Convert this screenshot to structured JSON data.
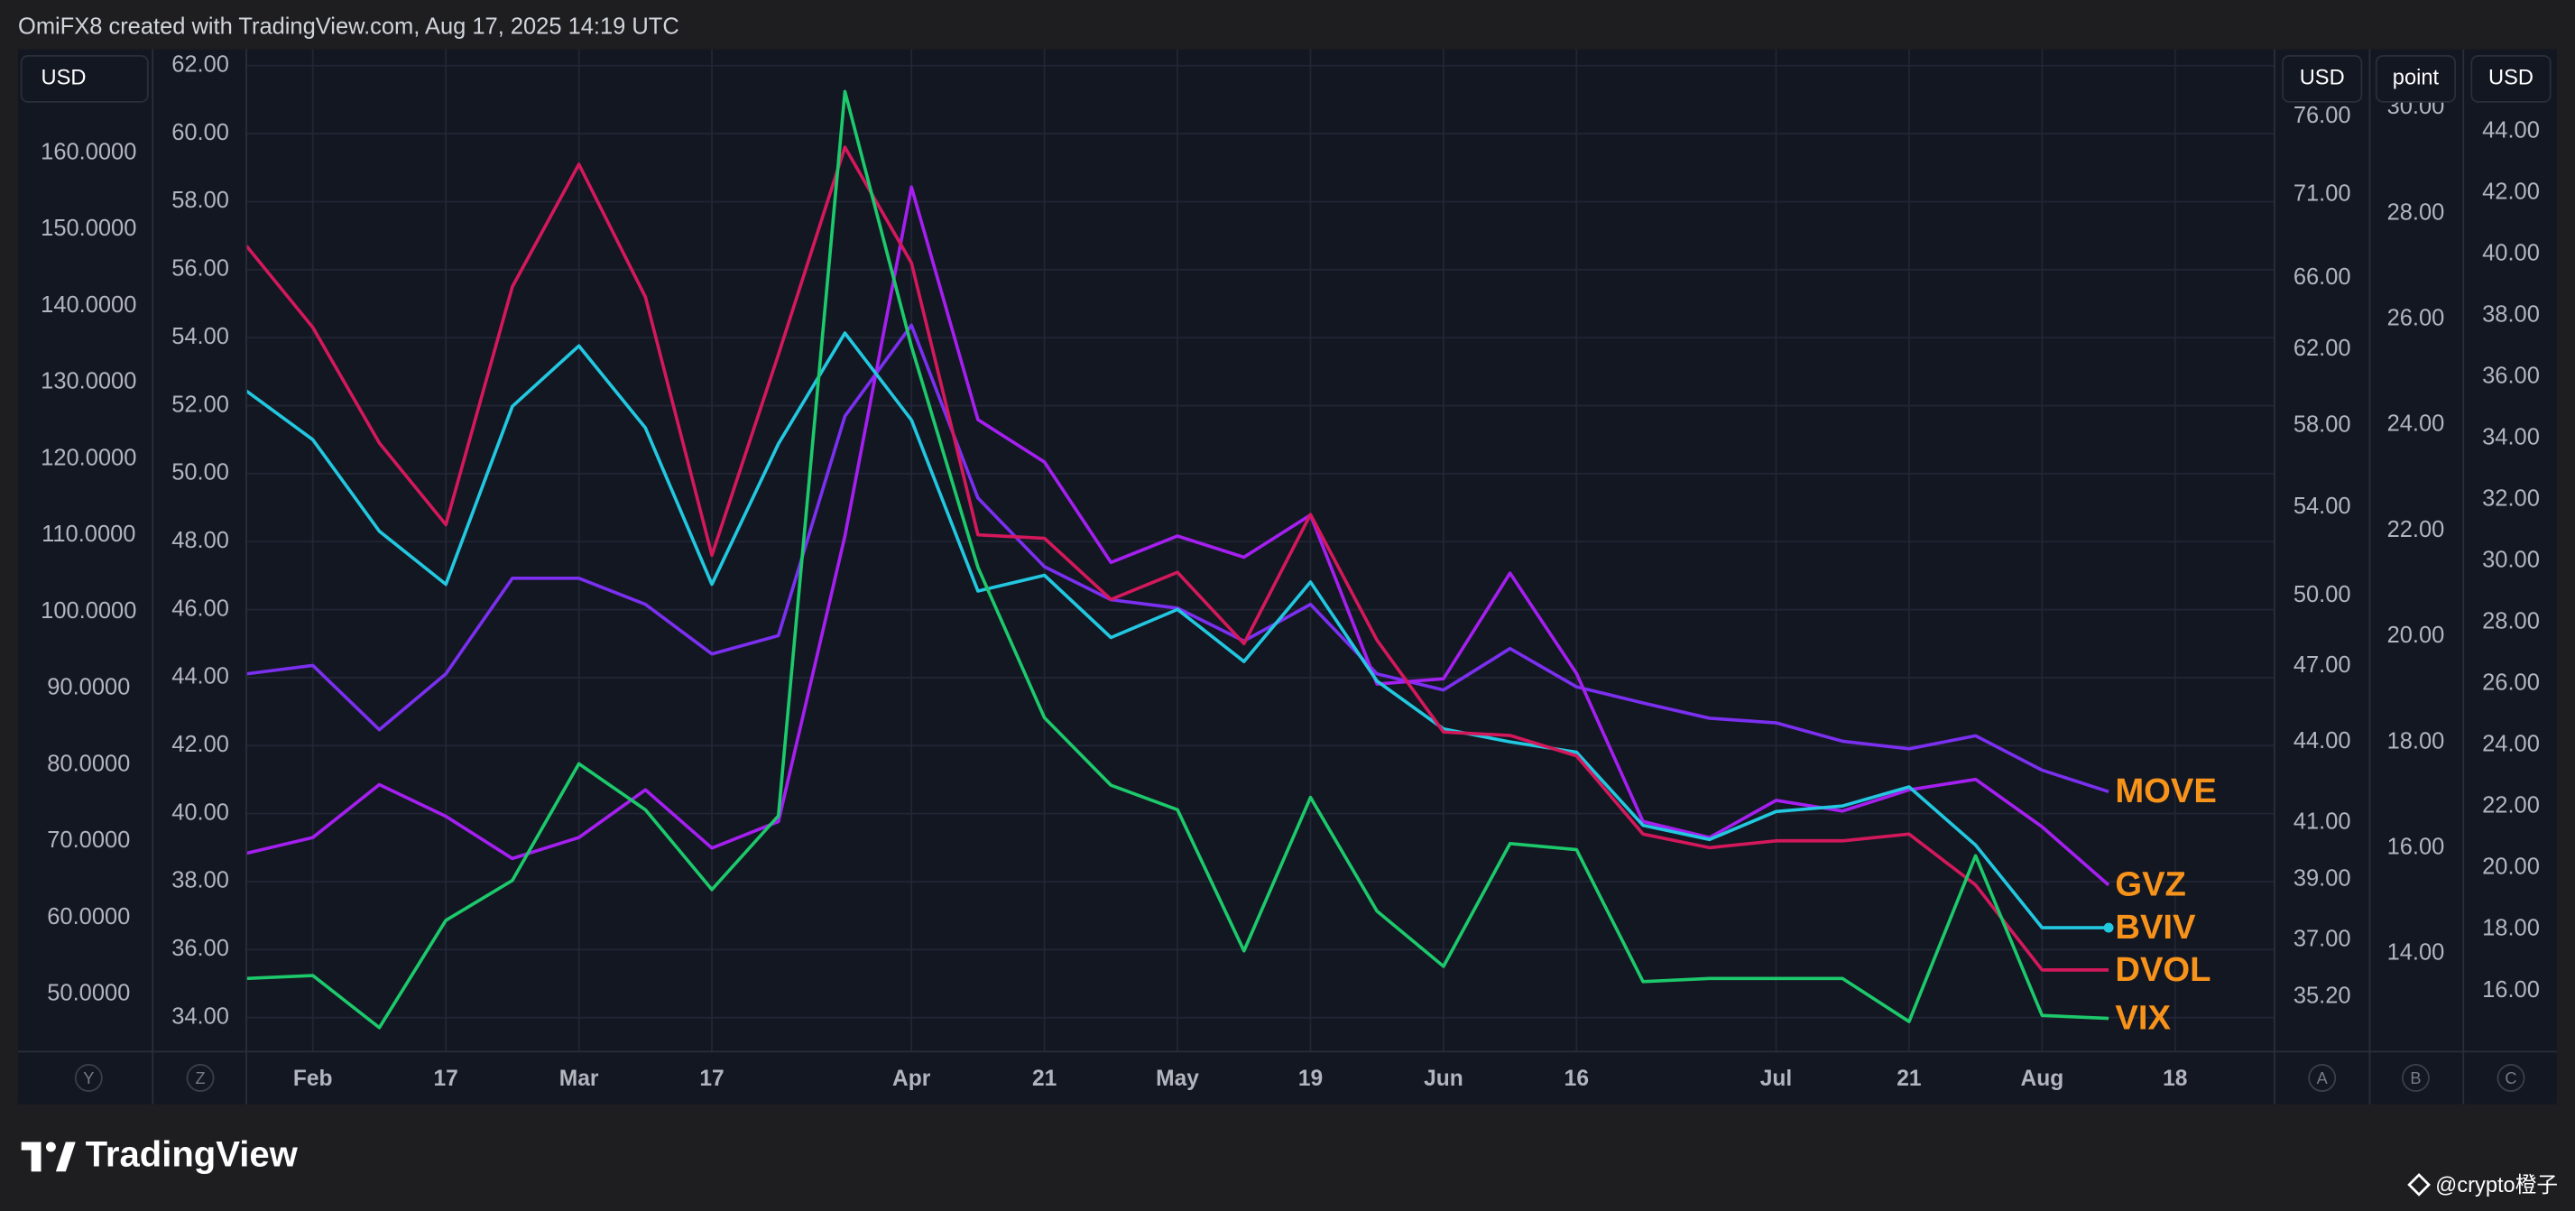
{
  "header": {
    "text": "OmiFX8 created with TradingView.com, Aug 17, 2025 14:19 UTC"
  },
  "chart_data": {
    "type": "line",
    "categories": [
      null,
      "Feb",
      null,
      "17",
      null,
      "Mar",
      null,
      "17",
      null,
      null,
      "Apr",
      null,
      "21",
      null,
      "May",
      null,
      "19",
      null,
      "Jun",
      null,
      "16",
      null,
      null,
      "Jul",
      null,
      "21",
      null,
      "Aug",
      null,
      "18"
    ],
    "grid": true,
    "grid_axis": "Z",
    "label_color": "#f7931a",
    "axes": [
      {
        "id": "Y",
        "side": "left",
        "unit": "USD",
        "lim": [
          42.5,
          172.5
        ],
        "ticks": [
          {
            "value": 50,
            "label": "50.0000"
          },
          {
            "value": 60,
            "label": "60.0000"
          },
          {
            "value": 70,
            "label": "70.0000"
          },
          {
            "value": 80,
            "label": "80.0000"
          },
          {
            "value": 90,
            "label": "90.0000"
          },
          {
            "value": 100,
            "label": "100.0000"
          },
          {
            "value": 110,
            "label": "110.0000"
          },
          {
            "value": 120,
            "label": "120.0000"
          },
          {
            "value": 130,
            "label": "130.0000"
          },
          {
            "value": 140,
            "label": "140.0000"
          },
          {
            "value": 150,
            "label": "150.0000"
          },
          {
            "value": 160,
            "label": "160.0000"
          }
        ]
      },
      {
        "id": "Z",
        "side": "left",
        "lim": [
          33.0,
          62.24
        ],
        "ticks": [
          {
            "value": 34,
            "label": "34.00"
          },
          {
            "value": 36,
            "label": "36.00"
          },
          {
            "value": 38,
            "label": "38.00"
          },
          {
            "value": 40,
            "label": "40.00"
          },
          {
            "value": 42,
            "label": "42.00"
          },
          {
            "value": 44,
            "label": "44.00"
          },
          {
            "value": 46,
            "label": "46.00"
          },
          {
            "value": 48,
            "label": "48.00"
          },
          {
            "value": 50,
            "label": "50.00"
          },
          {
            "value": 52,
            "label": "52.00"
          },
          {
            "value": 54,
            "label": "54.00"
          },
          {
            "value": 56,
            "label": "56.00"
          },
          {
            "value": 58,
            "label": "58.00"
          },
          {
            "value": 60,
            "label": "60.00"
          },
          {
            "value": 62,
            "label": "62.00"
          }
        ]
      },
      {
        "id": "A",
        "side": "right",
        "unit": "USD",
        "log": true,
        "lim": [
          33.56,
          80.04
        ],
        "ticks": [
          {
            "value": 35.2,
            "label": "35.20"
          },
          {
            "value": 37,
            "label": "37.00"
          },
          {
            "value": 39,
            "label": "39.00"
          },
          {
            "value": 41,
            "label": "41.00"
          },
          {
            "value": 44,
            "label": "44.00"
          },
          {
            "value": 47,
            "label": "47.00"
          },
          {
            "value": 50,
            "label": "50.00"
          },
          {
            "value": 54,
            "label": "54.00"
          },
          {
            "value": 58,
            "label": "58.00"
          },
          {
            "value": 62,
            "label": "62.00"
          },
          {
            "value": 66,
            "label": "66.00"
          },
          {
            "value": 71,
            "label": "71.00"
          },
          {
            "value": 76,
            "label": "76.00"
          }
        ]
      },
      {
        "id": "B",
        "side": "right",
        "unit": "point",
        "lim": [
          12.15,
          30.95
        ],
        "ticks": [
          {
            "value": 14,
            "label": "14.00"
          },
          {
            "value": 16,
            "label": "16.00"
          },
          {
            "value": 18,
            "label": "18.00"
          },
          {
            "value": 20,
            "label": "20.00"
          },
          {
            "value": 22,
            "label": "22.00"
          },
          {
            "value": 24,
            "label": "24.00"
          },
          {
            "value": 26,
            "label": "26.00"
          },
          {
            "value": 28,
            "label": "28.00"
          },
          {
            "value": 30,
            "label": "30.00"
          }
        ]
      },
      {
        "id": "C",
        "side": "right",
        "unit": "USD",
        "lim": [
          14.02,
          46.41
        ],
        "ticks": [
          {
            "value": 16,
            "label": "16.00"
          },
          {
            "value": 18,
            "label": "18.00"
          },
          {
            "value": 20,
            "label": "20.00"
          },
          {
            "value": 22,
            "label": "22.00"
          },
          {
            "value": 24,
            "label": "24.00"
          },
          {
            "value": 26,
            "label": "26.00"
          },
          {
            "value": 28,
            "label": "28.00"
          },
          {
            "value": 30,
            "label": "30.00"
          },
          {
            "value": 32,
            "label": "32.00"
          },
          {
            "value": 34,
            "label": "34.00"
          },
          {
            "value": 36,
            "label": "36.00"
          },
          {
            "value": 38,
            "label": "38.00"
          },
          {
            "value": 40,
            "label": "40.00"
          },
          {
            "value": 42,
            "label": "42.00"
          },
          {
            "value": 44,
            "label": "44.00"
          }
        ]
      }
    ],
    "series": [
      {
        "name": "MOVE",
        "color": "#7b2ff0",
        "axis": "Y",
        "values": [
          91.9,
          93.0,
          84.6,
          91.9,
          104.4,
          104.4,
          101.0,
          94.5,
          96.9,
          125.6,
          137.5,
          114.9,
          105.9,
          101.6,
          100.5,
          96.2,
          101.0,
          91.9,
          89.8,
          95.2,
          90.2,
          88.1,
          86.1,
          85.5,
          83.1,
          82.1,
          83.8,
          79.3,
          76.5,
          null
        ]
      },
      {
        "name": "GVZ",
        "color": "#a51ff0",
        "axis": "B",
        "values": [
          15.9,
          16.2,
          17.2,
          16.6,
          15.8,
          16.2,
          17.1,
          16.0,
          16.5,
          21.9,
          28.5,
          24.1,
          23.3,
          21.4,
          21.9,
          21.5,
          22.3,
          19.1,
          19.2,
          21.2,
          19.3,
          16.5,
          16.2,
          16.9,
          16.7,
          17.1,
          17.3,
          16.4,
          15.3,
          null
        ]
      },
      {
        "name": "BVIV",
        "color": "#22c8e0",
        "axis": "A",
        "end_dot": true,
        "values": [
          59.8,
          57.3,
          52.9,
          50.5,
          59.0,
          62.2,
          57.9,
          50.5,
          57.1,
          62.9,
          58.3,
          50.2,
          50.9,
          48.2,
          49.4,
          47.2,
          50.6,
          46.4,
          44.5,
          44.0,
          43.6,
          40.9,
          40.4,
          41.4,
          41.6,
          42.3,
          40.2,
          37.4,
          37.4,
          null
        ]
      },
      {
        "name": "DVOL",
        "color": "#d4185c",
        "axis": "Z",
        "values": [
          56.7,
          54.3,
          50.9,
          48.5,
          55.5,
          59.1,
          55.2,
          47.6,
          53.5,
          59.6,
          56.2,
          48.2,
          48.1,
          46.3,
          47.1,
          45.0,
          48.8,
          45.1,
          42.4,
          42.3,
          41.7,
          39.4,
          39.0,
          39.2,
          39.2,
          39.4,
          37.9,
          35.4,
          35.4,
          null
        ]
      },
      {
        "name": "VIX",
        "color": "#1cc96b",
        "axis": "C",
        "values": [
          16.4,
          16.5,
          14.8,
          18.3,
          19.6,
          23.4,
          21.9,
          19.3,
          21.7,
          45.3,
          37.0,
          29.8,
          24.9,
          22.7,
          21.9,
          17.3,
          22.3,
          18.6,
          16.8,
          20.8,
          20.6,
          16.3,
          16.4,
          16.4,
          16.4,
          15.0,
          20.4,
          15.2,
          15.1,
          null
        ]
      }
    ]
  },
  "footer": {
    "brand": "TradingView",
    "credit": "@crypto橙子"
  }
}
